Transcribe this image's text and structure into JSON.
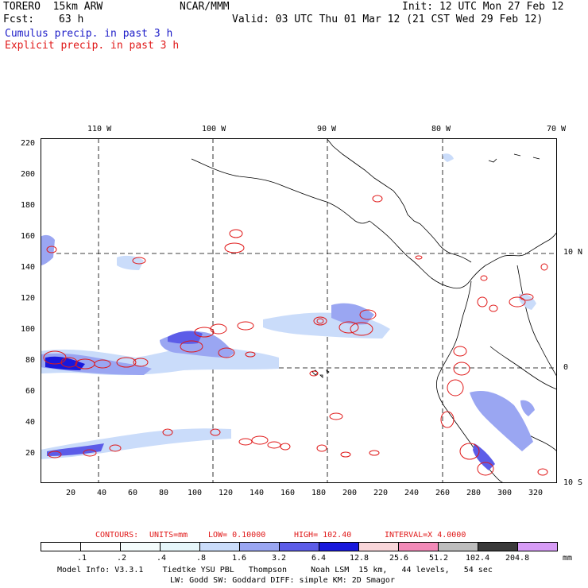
{
  "header": {
    "model": "TORERO  15km ARW",
    "org": "NCAR/MMM",
    "init": "Init: 12 UTC Mon 27 Feb 12",
    "fcst_label": "Fcst:",
    "fcst_value": "63 h",
    "valid": "Valid: 03 UTC Thu 01 Mar 12 (21 CST Wed 29 Feb 12)",
    "line_cumulus": "Cumulus precip. in past 3 h",
    "line_explicit": "Explicit precip. in past 3 h"
  },
  "top_axis": [
    "110 W",
    "100 W",
    "90 W",
    "80 W",
    "70 W"
  ],
  "right_axis": [
    "10 N",
    "0",
    "10 S"
  ],
  "left_axis": [
    "220",
    "200",
    "180",
    "160",
    "140",
    "120",
    "100",
    "80",
    "60",
    "40",
    "20"
  ],
  "bottom_axis": [
    "20",
    "40",
    "60",
    "80",
    "100",
    "120",
    "140",
    "160",
    "180",
    "200",
    "220",
    "240",
    "260",
    "280",
    "300",
    "320"
  ],
  "contours": {
    "label": "CONTOURS:",
    "units": "UNITS=mm",
    "low": "LOW= 0.10000",
    "high": "HIGH= 102.40",
    "interval": "INTERVAL=X 4.0000"
  },
  "colorbar": {
    "labels": [
      ".1",
      ".2",
      ".4",
      ".8",
      "1.6",
      "3.2",
      "6.4",
      "12.8",
      "25.6",
      "51.2",
      "102.4",
      "204.8"
    ],
    "unit": "mm",
    "colors": [
      "#ffffff",
      "#ffffff",
      "#f4fcfc",
      "#e6f6fa",
      "#cadcfa",
      "#9aa6f2",
      "#5c5ce8",
      "#1818dc",
      "#f9d6da",
      "#f28ab8",
      "#bdbdbd",
      "#3a3a3a",
      "#d79cf6"
    ]
  },
  "footer": {
    "line1": "Model Info: V3.3.1    Tiedtke YSU PBL   Thompson     Noah LSM  15 km,   44 levels,   54 sec",
    "line2": "LW: Godd SW: Goddard DIFF: simple KM: 2D Smagor"
  }
}
